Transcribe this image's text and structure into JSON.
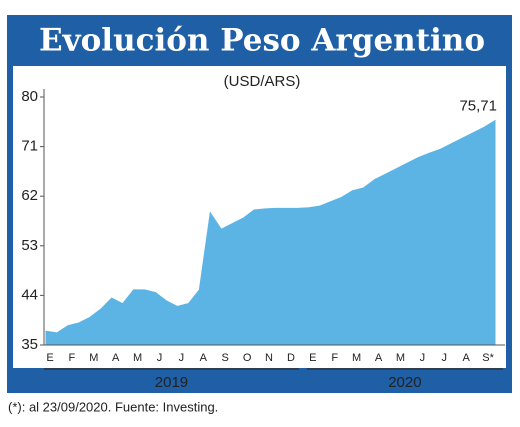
{
  "chart_data": {
    "type": "area",
    "title": "Evolución Peso Argentino",
    "subtitle": "(USD/ARS)",
    "categories": [
      "E",
      null,
      "F",
      null,
      "M",
      null,
      "A",
      null,
      "M",
      null,
      "J",
      null,
      "J",
      null,
      "A",
      null,
      "S",
      null,
      "O",
      null,
      "N",
      null,
      "D",
      null,
      "E",
      null,
      "F",
      null,
      "M",
      null,
      "A",
      null,
      "M",
      null,
      "J",
      null,
      "J",
      null,
      "A",
      null,
      "S*",
      null
    ],
    "values": [
      37.5,
      37.2,
      38.5,
      39,
      40,
      41.5,
      43.5,
      42.5,
      45,
      45,
      44.5,
      43,
      42,
      42.5,
      45,
      59,
      56,
      57,
      58,
      59.5,
      59.7,
      59.8,
      59.8,
      59.8,
      59.9,
      60.2,
      61,
      61.8,
      63,
      63.5,
      65,
      66,
      67,
      68,
      69,
      69.8,
      70.5,
      71.5,
      72.5,
      73.5,
      74.5,
      75.71
    ],
    "value_labels": [
      null,
      null,
      null,
      null,
      null,
      null,
      null,
      null,
      null,
      null,
      null,
      null,
      null,
      null,
      null,
      null,
      null,
      null,
      null,
      null,
      null,
      null,
      null,
      null,
      null,
      null,
      null,
      null,
      null,
      null,
      null,
      null,
      null,
      null,
      null,
      null,
      null,
      null,
      null,
      null,
      null,
      "75,71"
    ],
    "x_groups": [
      "2019",
      "2020"
    ],
    "color": "#5cb4e4",
    "ylim": [
      35,
      80
    ],
    "yticks": [
      35,
      44,
      53,
      62,
      71,
      80
    ],
    "grid": false,
    "footnote": "(*): al 23/09/2020. Fuente: Investing."
  }
}
